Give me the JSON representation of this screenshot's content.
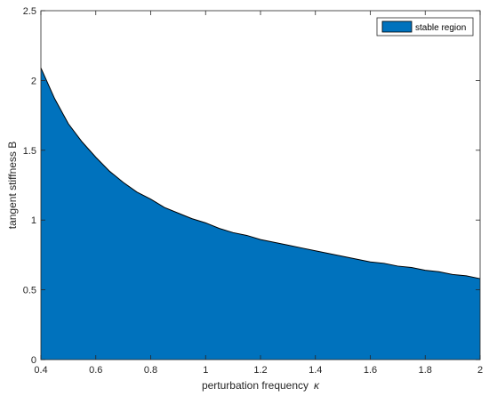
{
  "chart_data": {
    "type": "area",
    "title": "",
    "xlabel": "perturbation frequency",
    "xlabel_symbol": "κ",
    "ylabel": "tangent stiffness B",
    "xlim": [
      0.4,
      2
    ],
    "ylim": [
      0,
      2.5
    ],
    "xticks": [
      0.4,
      0.6,
      0.8,
      1,
      1.2,
      1.4,
      1.6,
      1.8,
      2
    ],
    "xtick_labels": [
      "0.4",
      "0.6",
      "0.8",
      "1",
      "1.2",
      "1.4",
      "1.6",
      "1.8",
      "2"
    ],
    "yticks": [
      0,
      0.5,
      1,
      1.5,
      2,
      2.5
    ],
    "ytick_labels": [
      "0",
      "0.5",
      "1",
      "1.5",
      "2",
      "2.5"
    ],
    "grid": false,
    "legend_position": "top-right",
    "series": [
      {
        "name": "stable region",
        "color": "#0072bd",
        "x": [
          0.4,
          0.45,
          0.5,
          0.55,
          0.6,
          0.65,
          0.7,
          0.75,
          0.8,
          0.85,
          0.9,
          0.95,
          1,
          1.05,
          1.1,
          1.15,
          1.2,
          1.25,
          1.3,
          1.35,
          1.4,
          1.45,
          1.5,
          1.55,
          1.6,
          1.65,
          1.7,
          1.75,
          1.8,
          1.85,
          1.9,
          1.95,
          2
        ],
        "y": [
          2.09,
          1.87,
          1.69,
          1.56,
          1.45,
          1.35,
          1.27,
          1.2,
          1.15,
          1.09,
          1.05,
          1.01,
          0.98,
          0.94,
          0.91,
          0.89,
          0.86,
          0.84,
          0.82,
          0.8,
          0.78,
          0.76,
          0.74,
          0.72,
          0.7,
          0.69,
          0.67,
          0.66,
          0.64,
          0.63,
          0.61,
          0.6,
          0.58
        ]
      }
    ]
  }
}
